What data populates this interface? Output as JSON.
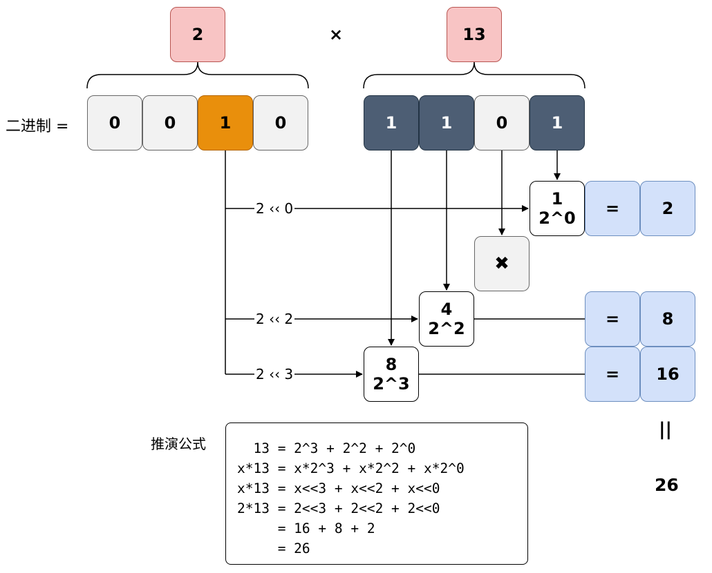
{
  "operands": {
    "left": "2",
    "operator": "×",
    "right": "13"
  },
  "binary_label": "二进制 =",
  "left_bits": [
    "0",
    "0",
    "1",
    "0"
  ],
  "right_bits": [
    "1",
    "1",
    "0",
    "1"
  ],
  "shift_labels": {
    "s0": "2 ‹‹ 0",
    "s2": "2 ‹‹ 2",
    "s3": "2 ‹‹ 3"
  },
  "power_boxes": {
    "p0": {
      "coef": "1",
      "power": "2^0"
    },
    "p2": {
      "coef": "4",
      "power": "2^2"
    },
    "p3": {
      "coef": "8",
      "power": "2^3"
    }
  },
  "skip_icon": "✖",
  "results": {
    "r0": {
      "eq": "=",
      "value": "2"
    },
    "r2": {
      "eq": "=",
      "value": "8"
    },
    "r3": {
      "eq": "=",
      "value": "16"
    }
  },
  "sum_sign": "||",
  "total": "26",
  "formula_title": "推演公式",
  "formula_lines": [
    "  13 = 2^3 + 2^2 + 2^0",
    "x*13 = x*2^3 + x*2^2 + x*2^0",
    "x*13 = x<<3 + x<<2 + x<<0",
    "2*13 = 2<<3 + 2<<2 + 2<<0",
    "     = 16 + 8 + 2",
    "     = 26"
  ],
  "colors": {
    "pink": "#f8c4c4",
    "orange": "#e98f0c",
    "slate": "#4d5e74",
    "blue": "#d3e1fa",
    "gray": "#f2f2f2"
  }
}
